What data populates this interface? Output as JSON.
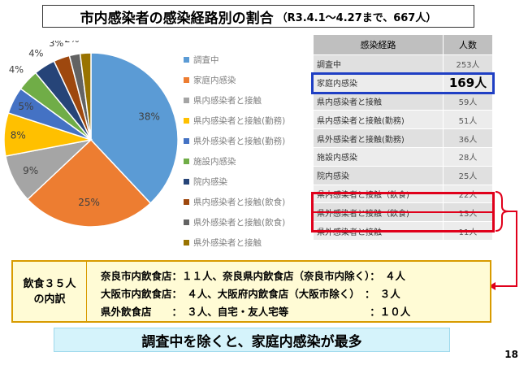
{
  "header": {
    "title_main": "市内感染者の感染経路別の割合",
    "title_sub": "（R3.4.1～4.27まで、667人）"
  },
  "chart_data": {
    "type": "pie",
    "categories": [
      "調査中",
      "家庭内感染",
      "県内感染者と接触",
      "県内感染者と接触(勤務)",
      "県外感染者と接触(勤務)",
      "施設内感染",
      "院内感染",
      "県内感染者と接触(飲食)",
      "県外感染者と接触(飲食)",
      "県外感染者と接触"
    ],
    "values": [
      38,
      25,
      9,
      8,
      5,
      4,
      4,
      3,
      2,
      2
    ],
    "colors": [
      "#5b9bd5",
      "#ed7d31",
      "#a5a5a5",
      "#ffc000",
      "#4472c4",
      "#70ad47",
      "#264478",
      "#9e480e",
      "#636363",
      "#997300"
    ],
    "labels": [
      "38%",
      "25%",
      "9%",
      "8%",
      "5%",
      "4%",
      "4%",
      "3%",
      "2%",
      "2%"
    ],
    "legend_position": "right"
  },
  "table": {
    "headers": [
      "感染経路",
      "人数"
    ],
    "rows": [
      [
        "調査中",
        "253人"
      ],
      [
        "家庭内感染",
        "169人"
      ],
      [
        "県内感染者と接触",
        "59人"
      ],
      [
        "県内感染者と接触(勤務)",
        "51人"
      ],
      [
        "県外感染者と接触(勤務)",
        "36人"
      ],
      [
        "施設内感染",
        "28人"
      ],
      [
        "院内感染",
        "25人"
      ],
      [
        "県内感染者と接触（飲食)",
        "22人"
      ],
      [
        "県外感染者と接触（飲食)",
        "13人"
      ],
      [
        "県外感染者と接触",
        "11人"
      ]
    ]
  },
  "breakdown": {
    "label_line1": "飲食３５人",
    "label_line2": "の内訳",
    "lines": [
      "奈良市内飲食店：１１人、奈良県内飲食店（奈良市内除く）：　４人",
      "大阪市内飲食店：　４人、大阪府内飲食店（大阪市除く）　：　３人",
      "県外飲食店　　：　３人、自宅・友人宅等　　　　　　　　：１０人"
    ]
  },
  "conclusion": "調査中を除くと、家庭内感染が最多",
  "page_number": "18"
}
